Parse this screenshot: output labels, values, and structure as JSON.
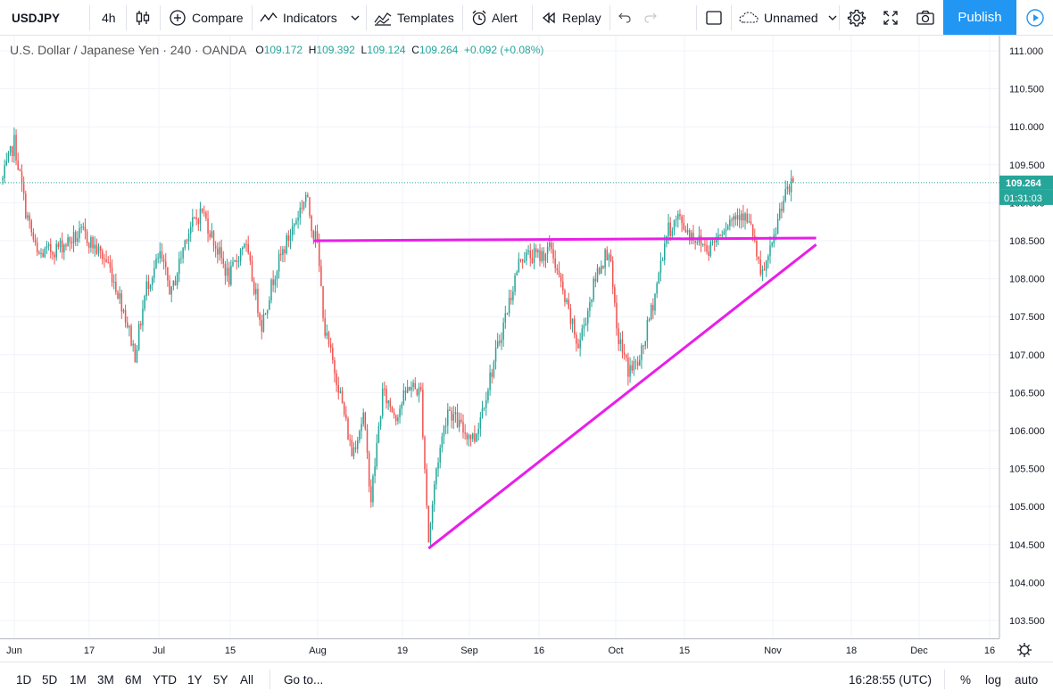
{
  "toolbar": {
    "symbol": "USDJPY",
    "interval": "4h",
    "chart_style_icon": "candles-icon",
    "compare": "Compare",
    "indicators": "Indicators",
    "templates": "Templates",
    "alert": "Alert",
    "replay": "Replay",
    "layout_name": "Unnamed",
    "publish": "Publish"
  },
  "legend": {
    "title": "U.S. Dollar / Japanese Yen · 240 · OANDA",
    "o_label": "O",
    "o": "109.172",
    "h_label": "H",
    "h": "109.392",
    "l_label": "L",
    "l": "109.124",
    "c_label": "C",
    "c": "109.264",
    "change": "+0.092 (+0.08%)"
  },
  "price_axis": {
    "ticks": [
      "111.000",
      "110.500",
      "110.000",
      "109.500",
      "109.000",
      "108.500",
      "108.000",
      "107.500",
      "107.000",
      "106.500",
      "106.000",
      "105.500",
      "105.000",
      "104.500",
      "104.000",
      "103.500"
    ],
    "last_price_label": "109.264",
    "countdown_label": "01:31:03"
  },
  "time_axis": {
    "ticks": [
      "Jun",
      "17",
      "Jul",
      "15",
      "Aug",
      "19",
      "Sep",
      "16",
      "Oct",
      "15",
      "Nov",
      "18",
      "Dec",
      "16"
    ]
  },
  "bottombar": {
    "ranges": [
      "1D",
      "5D",
      "1M",
      "3M",
      "6M",
      "YTD",
      "1Y",
      "5Y",
      "All"
    ],
    "goto": "Go to...",
    "clock": "16:28:55 (UTC)",
    "percent": "%",
    "log": "log",
    "auto": "auto"
  },
  "colors": {
    "up": "#26a69a",
    "down": "#ef5350",
    "drawing": "#e91ee9",
    "accent": "#2196f3"
  },
  "chart_data": {
    "type": "candlestick",
    "symbol": "USDJPY",
    "timeframe": "240",
    "ylim": [
      103.3,
      111.1
    ],
    "grid": true,
    "last_price": 109.264,
    "anchors": [
      [
        0,
        109.3
      ],
      [
        6,
        109.8
      ],
      [
        12,
        108.9
      ],
      [
        18,
        108.3
      ],
      [
        28,
        108.4
      ],
      [
        42,
        108.6
      ],
      [
        55,
        108.2
      ],
      [
        63,
        107.6
      ],
      [
        69,
        107.0
      ],
      [
        75,
        107.9
      ],
      [
        82,
        108.3
      ],
      [
        88,
        107.8
      ],
      [
        96,
        108.6
      ],
      [
        104,
        108.9
      ],
      [
        110,
        108.5
      ],
      [
        118,
        108.0
      ],
      [
        126,
        108.5
      ],
      [
        135,
        107.4
      ],
      [
        142,
        108.1
      ],
      [
        150,
        108.6
      ],
      [
        158,
        109.1
      ],
      [
        162,
        108.6
      ],
      [
        163,
        108.7
      ],
      [
        168,
        107.3
      ],
      [
        175,
        106.6
      ],
      [
        182,
        105.7
      ],
      [
        188,
        106.2
      ],
      [
        192,
        105.1
      ],
      [
        198,
        106.5
      ],
      [
        205,
        106.2
      ],
      [
        212,
        106.6
      ],
      [
        218,
        106.5
      ],
      [
        222,
        104.55
      ],
      [
        226,
        105.5
      ],
      [
        232,
        106.3
      ],
      [
        240,
        106.0
      ],
      [
        246,
        105.9
      ],
      [
        255,
        106.8
      ],
      [
        262,
        107.5
      ],
      [
        270,
        108.3
      ],
      [
        280,
        108.3
      ],
      [
        286,
        108.4
      ],
      [
        292,
        107.8
      ],
      [
        300,
        107.1
      ],
      [
        310,
        108.1
      ],
      [
        316,
        108.4
      ],
      [
        320,
        107.3
      ],
      [
        326,
        106.8
      ],
      [
        332,
        106.9
      ],
      [
        340,
        107.8
      ],
      [
        346,
        108.6
      ],
      [
        352,
        108.8
      ],
      [
        358,
        108.6
      ],
      [
        368,
        108.4
      ],
      [
        376,
        108.7
      ],
      [
        385,
        108.9
      ],
      [
        391,
        108.6
      ],
      [
        395,
        108.0
      ],
      [
        401,
        108.4
      ],
      [
        406,
        109.0
      ],
      [
        412,
        109.26
      ]
    ],
    "drawings": [
      {
        "type": "horizontal_line",
        "from_bar": 162,
        "to_bar": 424,
        "price": 108.5
      },
      {
        "type": "trendline",
        "from": [
          222,
          104.45
        ],
        "to": [
          424,
          108.45
        ]
      }
    ]
  }
}
